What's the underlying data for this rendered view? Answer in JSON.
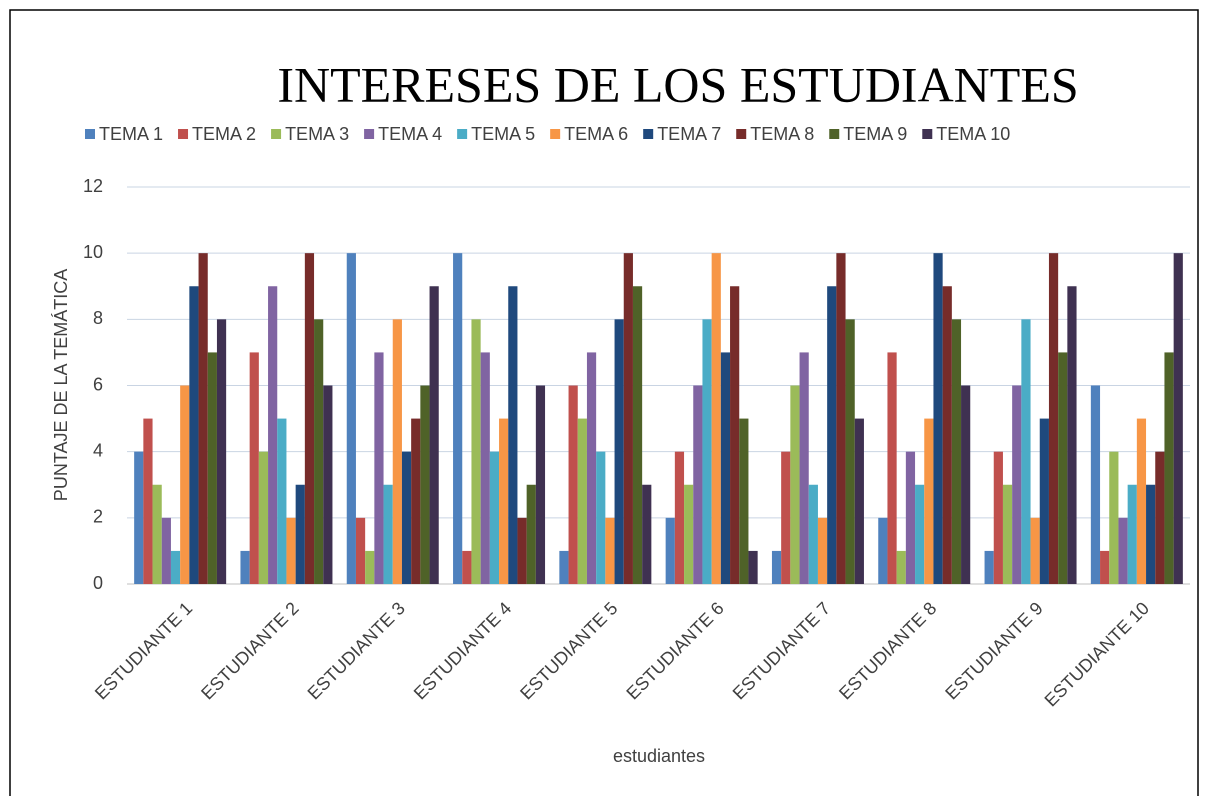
{
  "chart_data": {
    "type": "bar",
    "title": "INTERESES DE LOS ESTUDIANTES",
    "x_label": "estudiantes",
    "y_label": "PUNTAJE DE LA TEMÁTICA",
    "categories": [
      "ESTUDIANTE  1",
      "ESTUDIANTE  2",
      "ESTUDIANTE  3",
      "ESTUDIANTE  4",
      "ESTUDIANTE  5",
      "ESTUDIANTE  6",
      "ESTUDIANTE  7",
      "ESTUDIANTE  8",
      "ESTUDIANTE  9",
      "ESTUDIANTE  10"
    ],
    "series": [
      {
        "name": "TEMA 1",
        "color": "#4f81bd",
        "values": [
          4,
          1,
          10,
          10,
          1,
          2,
          1,
          2,
          1,
          6
        ]
      },
      {
        "name": "TEMA 2",
        "color": "#c0504d",
        "values": [
          5,
          7,
          2,
          1,
          6,
          4,
          4,
          7,
          4,
          1
        ]
      },
      {
        "name": "TEMA 3",
        "color": "#9bbb59",
        "values": [
          3,
          4,
          1,
          8,
          5,
          3,
          6,
          1,
          3,
          4
        ]
      },
      {
        "name": "TEMA 4",
        "color": "#8064a2",
        "values": [
          2,
          9,
          7,
          7,
          7,
          6,
          7,
          4,
          6,
          2
        ]
      },
      {
        "name": "TEMA 5",
        "color": "#4bacc6",
        "values": [
          1,
          5,
          3,
          4,
          4,
          8,
          3,
          3,
          8,
          3
        ]
      },
      {
        "name": "TEMA 6",
        "color": "#f79646",
        "values": [
          6,
          2,
          8,
          5,
          2,
          10,
          2,
          5,
          2,
          5
        ]
      },
      {
        "name": "TEMA 7",
        "color": "#1f497d",
        "values": [
          9,
          3,
          4,
          9,
          8,
          7,
          9,
          10,
          5,
          3
        ]
      },
      {
        "name": "TEMA 8",
        "color": "#772c2a",
        "values": [
          10,
          10,
          5,
          2,
          10,
          9,
          10,
          9,
          10,
          4
        ]
      },
      {
        "name": "TEMA 9",
        "color": "#4f6228",
        "values": [
          7,
          8,
          6,
          3,
          9,
          5,
          8,
          8,
          7,
          7
        ]
      },
      {
        "name": "TEMA 10",
        "color": "#3f3151",
        "values": [
          8,
          6,
          9,
          6,
          3,
          1,
          5,
          6,
          9,
          10
        ]
      }
    ],
    "ylim": [
      0,
      12
    ],
    "yticks": [
      0,
      2,
      4,
      6,
      8,
      10,
      12
    ],
    "grid": true,
    "legend": "top"
  }
}
